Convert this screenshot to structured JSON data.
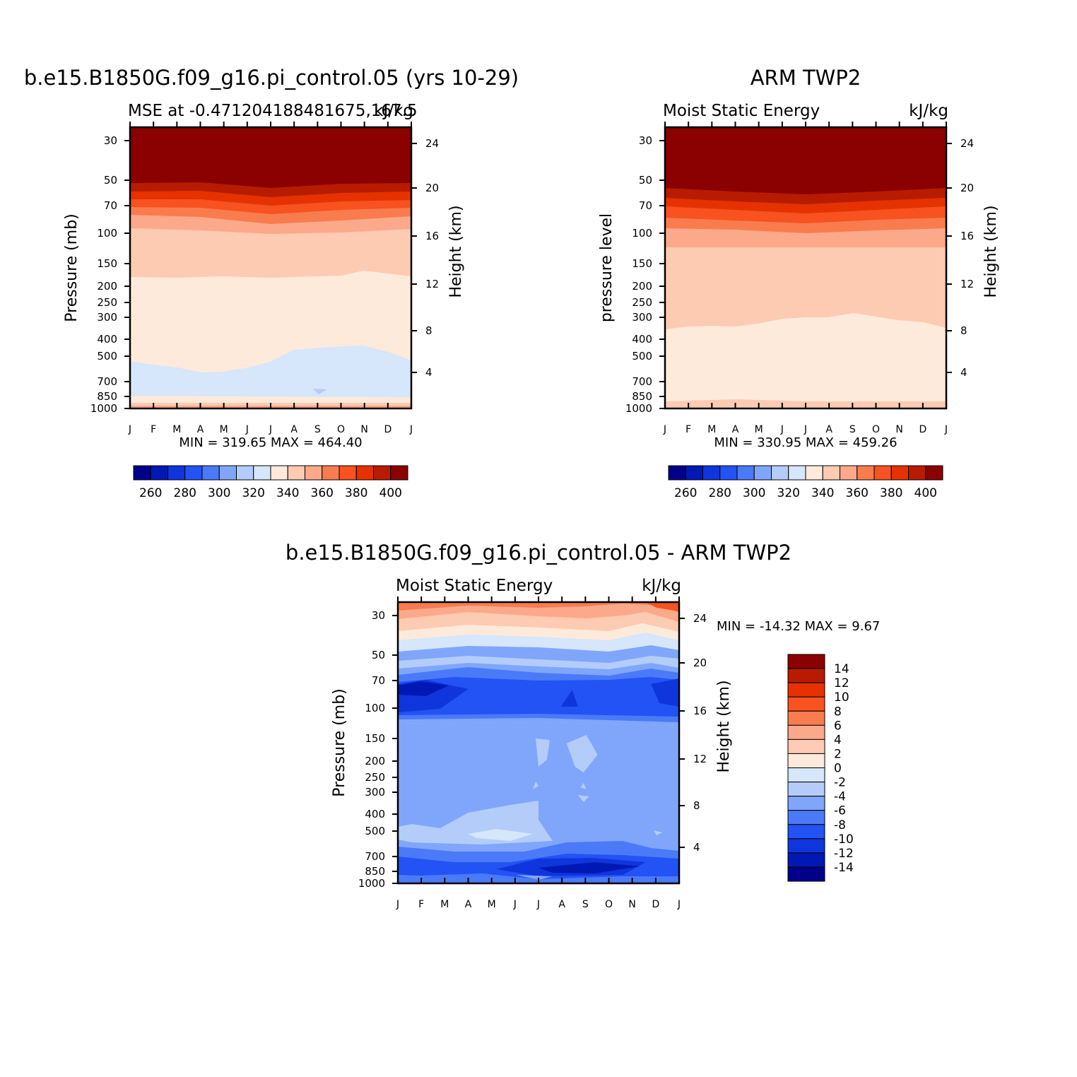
{
  "chart_data": [
    {
      "type": "heatmap",
      "title": "b.e15.B1850G.f09_g16.pi_control.05 (yrs 10-29)",
      "subtitle_left": "MSE at -0.471204188481675,167.5",
      "subtitle_right": "kJ/kg",
      "ylabel": "Pressure (mb)",
      "ylabel_right": "Height (km)",
      "x_ticks": [
        "J",
        "F",
        "M",
        "A",
        "M",
        "J",
        "J",
        "A",
        "S",
        "O",
        "N",
        "D",
        "J"
      ],
      "y_ticks": [
        "30",
        "50",
        "70",
        "100",
        "150",
        "200",
        "250",
        "300",
        "400",
        "500",
        "700",
        "850",
        "1000"
      ],
      "y_ticks_right": [
        "24",
        "20",
        "16",
        "12",
        "8",
        "4"
      ],
      "min_max": "MIN = 319.65 MAX = 464.40",
      "colorbar_ticks": [
        "260",
        "280",
        "300",
        "320",
        "340",
        "360",
        "380",
        "400"
      ],
      "colorbar_colors": [
        "#00008b",
        "#0019b4",
        "#0f35dc",
        "#2352f5",
        "#4a7af7",
        "#7fa6fa",
        "#b4ccfa",
        "#d6e6fb",
        "#feeadb",
        "#fdcab2",
        "#fba98a",
        "#f97c4e",
        "#f7521f",
        "#e63200",
        "#b71c00",
        "#8b0000"
      ],
      "bands": [
        {
          "level": "800",
          "color": "#fba98a"
        },
        {
          "level": "440",
          "color": "#fdcab2"
        },
        {
          "level": "330",
          "color": "#feeadb"
        },
        {
          "level": "330",
          "color": "#d6e6fb"
        },
        {
          "level": "355",
          "color": "#fba98a"
        },
        {
          "level": "372",
          "color": "#f97c4e"
        },
        {
          "level": "382",
          "color": "#f7521f"
        },
        {
          "level": "392",
          "color": "#e63200"
        },
        {
          "level": "400",
          "color": "#b71c00"
        },
        {
          "level": "410",
          "color": "#8b0000"
        }
      ]
    },
    {
      "type": "heatmap",
      "title": "ARM TWP2",
      "subtitle_left": "Moist Static Energy",
      "subtitle_right": "kJ/kg",
      "ylabel": "pressure level",
      "ylabel_right": "Height (km)",
      "x_ticks": [
        "J",
        "F",
        "M",
        "A",
        "M",
        "J",
        "J",
        "A",
        "S",
        "O",
        "N",
        "D",
        "J"
      ],
      "y_ticks": [
        "30",
        "50",
        "70",
        "100",
        "150",
        "200",
        "250",
        "300",
        "400",
        "500",
        "700",
        "850",
        "1000"
      ],
      "y_ticks_right": [
        "24",
        "20",
        "16",
        "12",
        "8",
        "4"
      ],
      "min_max": "MIN = 330.95 MAX = 459.26",
      "colorbar_ticks": [
        "260",
        "280",
        "300",
        "320",
        "340",
        "360",
        "380",
        "400"
      ],
      "colorbar_colors": [
        "#00008b",
        "#0019b4",
        "#0f35dc",
        "#2352f5",
        "#4a7af7",
        "#7fa6fa",
        "#b4ccfa",
        "#d6e6fb",
        "#feeadb",
        "#fdcab2",
        "#fba98a",
        "#f97c4e",
        "#f7521f",
        "#e63200",
        "#b71c00",
        "#8b0000"
      ]
    },
    {
      "type": "heatmap",
      "title": "b.e15.B1850G.f09_g16.pi_control.05 - ARM TWP2",
      "subtitle_left": "Moist Static Energy",
      "subtitle_right": "kJ/kg",
      "ylabel": "Pressure (mb)",
      "ylabel_right": "Height (km)",
      "x_ticks": [
        "J",
        "F",
        "M",
        "A",
        "M",
        "J",
        "J",
        "A",
        "S",
        "O",
        "N",
        "D",
        "J"
      ],
      "y_ticks": [
        "30",
        "50",
        "70",
        "100",
        "150",
        "200",
        "250",
        "300",
        "400",
        "500",
        "700",
        "850",
        "1000"
      ],
      "y_ticks_right": [
        "24",
        "20",
        "16",
        "12",
        "8",
        "4"
      ],
      "min_max": "MIN = -14.32 MAX =    9.67",
      "colorbar_ticks": [
        "14",
        "12",
        "10",
        "8",
        "6",
        "4",
        "2",
        "0",
        "-2",
        "-4",
        "-6",
        "-8",
        "-10",
        "-12",
        "-14"
      ],
      "colorbar_colors": [
        "#8b0000",
        "#b71c00",
        "#e63200",
        "#f7521f",
        "#f97c4e",
        "#fba98a",
        "#fdcab2",
        "#feeadb",
        "#d6e6fb",
        "#b4ccfa",
        "#7fa6fa",
        "#4a7af7",
        "#2352f5",
        "#0f35dc",
        "#0019b4",
        "#00008b"
      ]
    }
  ]
}
